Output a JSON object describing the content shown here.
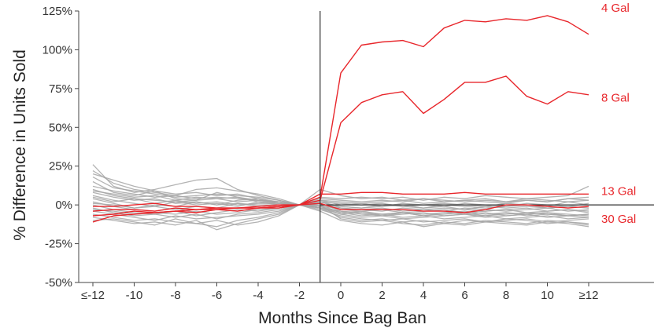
{
  "chart_data": {
    "type": "line",
    "title": "",
    "xlabel": "Months Since Bag Ban",
    "ylabel": "% Difference in Units Sold",
    "x": [
      -12,
      -11,
      -10,
      -9,
      -8,
      -7,
      -6,
      -5,
      -4,
      -3,
      -2,
      -1,
      0,
      1,
      2,
      3,
      4,
      5,
      6,
      7,
      8,
      9,
      10,
      11,
      12
    ],
    "xlim": [
      -12,
      15.5
    ],
    "ylim": [
      -0.5,
      1.25
    ],
    "x_ticks": [
      -12,
      -10,
      -8,
      -6,
      -4,
      -2,
      0,
      2,
      4,
      6,
      8,
      10,
      12
    ],
    "x_tick_labels": [
      "≤-12",
      "-10",
      "-8",
      "-6",
      "-4",
      "-2",
      "0",
      "2",
      "4",
      "6",
      "8",
      "10",
      "≥12"
    ],
    "y_ticks": [
      -0.5,
      -0.25,
      0,
      0.25,
      0.5,
      0.75,
      1.0,
      1.25
    ],
    "y_tick_labels": [
      "-50%",
      "-25%",
      "0%",
      "25%",
      "50%",
      "75%",
      "100%",
      "125%"
    ],
    "event_line_x": -1,
    "zero_line": true,
    "grid": false,
    "highlight_color": "#e8262b",
    "background_series_color": "#a6a6a6",
    "series": [
      {
        "name": "4 Gal",
        "highlight": true,
        "values": [
          -0.04,
          -0.03,
          -0.03,
          -0.04,
          -0.02,
          -0.03,
          -0.02,
          -0.02,
          -0.02,
          -0.01,
          0.0,
          0.05,
          0.85,
          1.03,
          1.05,
          1.06,
          1.02,
          1.14,
          1.19,
          1.18,
          1.2,
          1.19,
          1.22,
          1.18,
          1.1
        ]
      },
      {
        "name": "8 Gal",
        "highlight": true,
        "values": [
          -0.07,
          -0.06,
          -0.04,
          -0.05,
          -0.04,
          -0.05,
          -0.03,
          -0.04,
          -0.02,
          -0.02,
          0.0,
          0.03,
          0.53,
          0.66,
          0.71,
          0.73,
          0.59,
          0.68,
          0.79,
          0.79,
          0.83,
          0.7,
          0.65,
          0.73,
          0.71
        ]
      },
      {
        "name": "13 Gal",
        "highlight": true,
        "values": [
          -0.01,
          -0.01,
          0.0,
          0.01,
          -0.01,
          -0.01,
          -0.02,
          -0.02,
          -0.01,
          0.0,
          0.0,
          0.07,
          0.07,
          0.08,
          0.08,
          0.07,
          0.07,
          0.07,
          0.08,
          0.07,
          0.07,
          0.07,
          0.07,
          0.07,
          0.07
        ]
      },
      {
        "name": "30 Gal",
        "highlight": true,
        "values": [
          -0.11,
          -0.07,
          -0.06,
          -0.05,
          -0.04,
          -0.03,
          -0.03,
          -0.02,
          -0.02,
          -0.01,
          0.0,
          0.01,
          -0.03,
          -0.03,
          -0.03,
          -0.03,
          -0.04,
          -0.04,
          -0.05,
          -0.03,
          0.0,
          0.0,
          -0.01,
          -0.02,
          -0.01
        ]
      },
      {
        "name": "",
        "values": [
          0.26,
          0.12,
          0.08,
          0.1,
          0.13,
          0.16,
          0.17,
          0.1,
          0.06,
          0.03,
          0.0,
          0.01,
          -0.04,
          -0.06,
          -0.07,
          -0.05,
          -0.06,
          -0.05,
          -0.04,
          -0.06,
          -0.05,
          -0.07,
          -0.06,
          -0.07,
          -0.08
        ]
      },
      {
        "name": "",
        "values": [
          0.22,
          0.14,
          0.1,
          0.08,
          0.06,
          0.1,
          0.11,
          0.09,
          0.07,
          0.04,
          0.0,
          -0.02,
          -0.08,
          -0.1,
          -0.09,
          -0.11,
          -0.1,
          -0.12,
          -0.1,
          -0.11,
          -0.09,
          -0.1,
          -0.12,
          -0.11,
          -0.13
        ]
      },
      {
        "name": "",
        "values": [
          0.18,
          0.11,
          0.09,
          0.07,
          0.05,
          0.06,
          0.07,
          0.06,
          0.05,
          0.03,
          0.0,
          0.03,
          0.02,
          0.01,
          0.02,
          0.03,
          0.01,
          0.02,
          0.03,
          0.02,
          0.01,
          0.03,
          0.02,
          0.04,
          0.05
        ]
      },
      {
        "name": "",
        "values": [
          0.15,
          0.08,
          0.06,
          0.09,
          0.04,
          0.03,
          0.08,
          0.05,
          0.03,
          0.02,
          0.0,
          0.05,
          0.04,
          0.05,
          0.04,
          0.05,
          0.03,
          0.05,
          0.04,
          0.06,
          0.05,
          0.04,
          0.05,
          0.06,
          0.12
        ]
      },
      {
        "name": "",
        "values": [
          0.12,
          0.09,
          0.07,
          0.05,
          0.06,
          0.04,
          0.05,
          0.04,
          0.03,
          0.02,
          0.0,
          0.02,
          0.01,
          0.0,
          0.01,
          -0.01,
          0.0,
          0.01,
          0.0,
          -0.01,
          0.01,
          0.0,
          -0.01,
          0.02,
          0.0
        ]
      },
      {
        "name": "",
        "values": [
          0.1,
          0.06,
          0.04,
          0.03,
          0.02,
          0.03,
          0.04,
          0.05,
          0.02,
          0.01,
          0.0,
          -0.01,
          -0.02,
          -0.03,
          -0.02,
          -0.04,
          -0.03,
          -0.02,
          -0.03,
          -0.04,
          -0.03,
          -0.02,
          -0.04,
          -0.03,
          -0.04
        ]
      },
      {
        "name": "",
        "values": [
          0.08,
          0.05,
          0.03,
          0.04,
          0.01,
          0.02,
          0.0,
          0.03,
          0.04,
          0.01,
          0.0,
          0.04,
          0.03,
          0.02,
          0.03,
          0.02,
          0.04,
          0.03,
          0.02,
          0.03,
          0.02,
          0.04,
          0.03,
          0.02,
          0.03
        ]
      },
      {
        "name": "",
        "values": [
          0.06,
          0.03,
          0.01,
          -0.01,
          0.02,
          0.0,
          0.01,
          -0.01,
          0.02,
          0.0,
          0.0,
          0.0,
          -0.01,
          -0.02,
          -0.01,
          0.0,
          -0.02,
          -0.01,
          -0.03,
          -0.01,
          -0.02,
          -0.01,
          -0.02,
          -0.01,
          -0.02
        ]
      },
      {
        "name": "",
        "values": [
          0.04,
          0.01,
          -0.02,
          -0.01,
          -0.03,
          -0.01,
          -0.02,
          0.01,
          -0.01,
          0.0,
          0.0,
          -0.02,
          -0.04,
          -0.05,
          -0.06,
          -0.05,
          -0.07,
          -0.06,
          -0.05,
          -0.07,
          -0.06,
          -0.05,
          -0.06,
          -0.07,
          -0.06
        ]
      },
      {
        "name": "",
        "values": [
          0.02,
          -0.01,
          -0.03,
          -0.04,
          -0.02,
          -0.05,
          -0.03,
          -0.04,
          -0.02,
          -0.01,
          0.0,
          0.01,
          -0.03,
          -0.04,
          -0.03,
          -0.05,
          -0.04,
          -0.03,
          -0.05,
          -0.04,
          -0.03,
          -0.05,
          -0.04,
          -0.03,
          -0.05
        ]
      },
      {
        "name": "",
        "values": [
          0.0,
          -0.03,
          -0.05,
          -0.06,
          -0.04,
          -0.07,
          -0.05,
          -0.03,
          -0.04,
          -0.02,
          0.0,
          -0.01,
          -0.05,
          -0.07,
          -0.06,
          -0.08,
          -0.07,
          -0.09,
          -0.08,
          -0.07,
          -0.09,
          -0.08,
          -0.07,
          -0.09,
          -0.08
        ]
      },
      {
        "name": "",
        "values": [
          -0.02,
          -0.05,
          -0.07,
          -0.06,
          -0.08,
          -0.06,
          -0.09,
          -0.06,
          -0.05,
          -0.03,
          0.0,
          0.02,
          -0.01,
          -0.02,
          0.0,
          -0.01,
          -0.02,
          0.0,
          -0.01,
          -0.02,
          -0.01,
          0.0,
          -0.02,
          -0.01,
          -0.02
        ]
      },
      {
        "name": "",
        "values": [
          -0.04,
          -0.06,
          -0.08,
          -0.1,
          -0.07,
          -0.09,
          -0.08,
          -0.07,
          -0.06,
          -0.04,
          0.0,
          -0.03,
          -0.07,
          -0.09,
          -0.1,
          -0.09,
          -0.11,
          -0.1,
          -0.09,
          -0.11,
          -0.1,
          -0.09,
          -0.11,
          -0.1,
          -0.09
        ]
      },
      {
        "name": "",
        "values": [
          -0.06,
          -0.08,
          -0.1,
          -0.09,
          -0.11,
          -0.12,
          -0.14,
          -0.1,
          -0.08,
          -0.05,
          0.0,
          -0.02,
          -0.06,
          -0.08,
          -0.07,
          -0.09,
          -0.08,
          -0.07,
          -0.06,
          -0.08,
          -0.07,
          -0.06,
          -0.08,
          -0.07,
          -0.06
        ]
      },
      {
        "name": "",
        "values": [
          -0.08,
          -0.1,
          -0.12,
          -0.11,
          -0.13,
          -0.1,
          -0.16,
          -0.12,
          -0.09,
          -0.06,
          0.0,
          0.0,
          -0.09,
          -0.11,
          -0.1,
          -0.12,
          -0.13,
          -0.11,
          -0.12,
          -0.1,
          -0.11,
          -0.12,
          -0.1,
          -0.11,
          -0.12
        ]
      },
      {
        "name": "",
        "values": [
          -0.1,
          -0.09,
          -0.11,
          -0.13,
          -0.09,
          -0.12,
          -0.1,
          -0.13,
          -0.11,
          -0.07,
          0.0,
          -0.04,
          -0.1,
          -0.12,
          -0.13,
          -0.11,
          -0.14,
          -0.12,
          -0.13,
          -0.11,
          -0.12,
          -0.13,
          -0.11,
          -0.12,
          -0.14
        ]
      },
      {
        "name": "",
        "values": [
          0.09,
          0.07,
          0.05,
          0.06,
          0.03,
          0.05,
          0.04,
          0.02,
          0.03,
          0.01,
          0.0,
          0.1,
          0.06,
          0.04,
          0.05,
          0.03,
          0.04,
          0.02,
          0.03,
          0.04,
          0.02,
          0.03,
          0.02,
          0.04,
          0.03
        ]
      },
      {
        "name": "",
        "values": [
          0.05,
          0.02,
          0.04,
          0.01,
          0.03,
          0.01,
          0.02,
          0.0,
          0.01,
          0.01,
          0.0,
          0.02,
          -0.02,
          -0.03,
          -0.04,
          -0.02,
          -0.03,
          -0.04,
          -0.02,
          -0.03,
          -0.04,
          -0.03,
          -0.02,
          -0.04,
          -0.03
        ]
      },
      {
        "name": "",
        "values": [
          -0.03,
          -0.04,
          -0.06,
          -0.05,
          -0.06,
          -0.04,
          -0.06,
          -0.05,
          -0.03,
          -0.02,
          0.0,
          -0.01,
          -0.06,
          -0.05,
          -0.07,
          -0.06,
          -0.05,
          -0.07,
          -0.06,
          -0.05,
          -0.07,
          -0.06,
          -0.05,
          -0.07,
          -0.06
        ]
      },
      {
        "name": "",
        "values": [
          0.01,
          0.0,
          -0.02,
          0.0,
          -0.01,
          0.02,
          0.0,
          0.01,
          0.0,
          0.0,
          0.0,
          0.03,
          0.0,
          0.01,
          -0.01,
          0.01,
          0.0,
          -0.01,
          0.01,
          0.0,
          -0.01,
          0.01,
          0.0,
          -0.01,
          0.01
        ]
      },
      {
        "name": "",
        "values": [
          0.2,
          0.16,
          0.12,
          0.09,
          0.07,
          0.08,
          0.06,
          0.07,
          0.04,
          0.02,
          0.0,
          0.0,
          -0.05,
          -0.04,
          -0.06,
          -0.05,
          -0.07,
          -0.05,
          -0.06,
          -0.07,
          -0.05,
          -0.06,
          -0.05,
          -0.06,
          -0.07
        ]
      }
    ]
  }
}
